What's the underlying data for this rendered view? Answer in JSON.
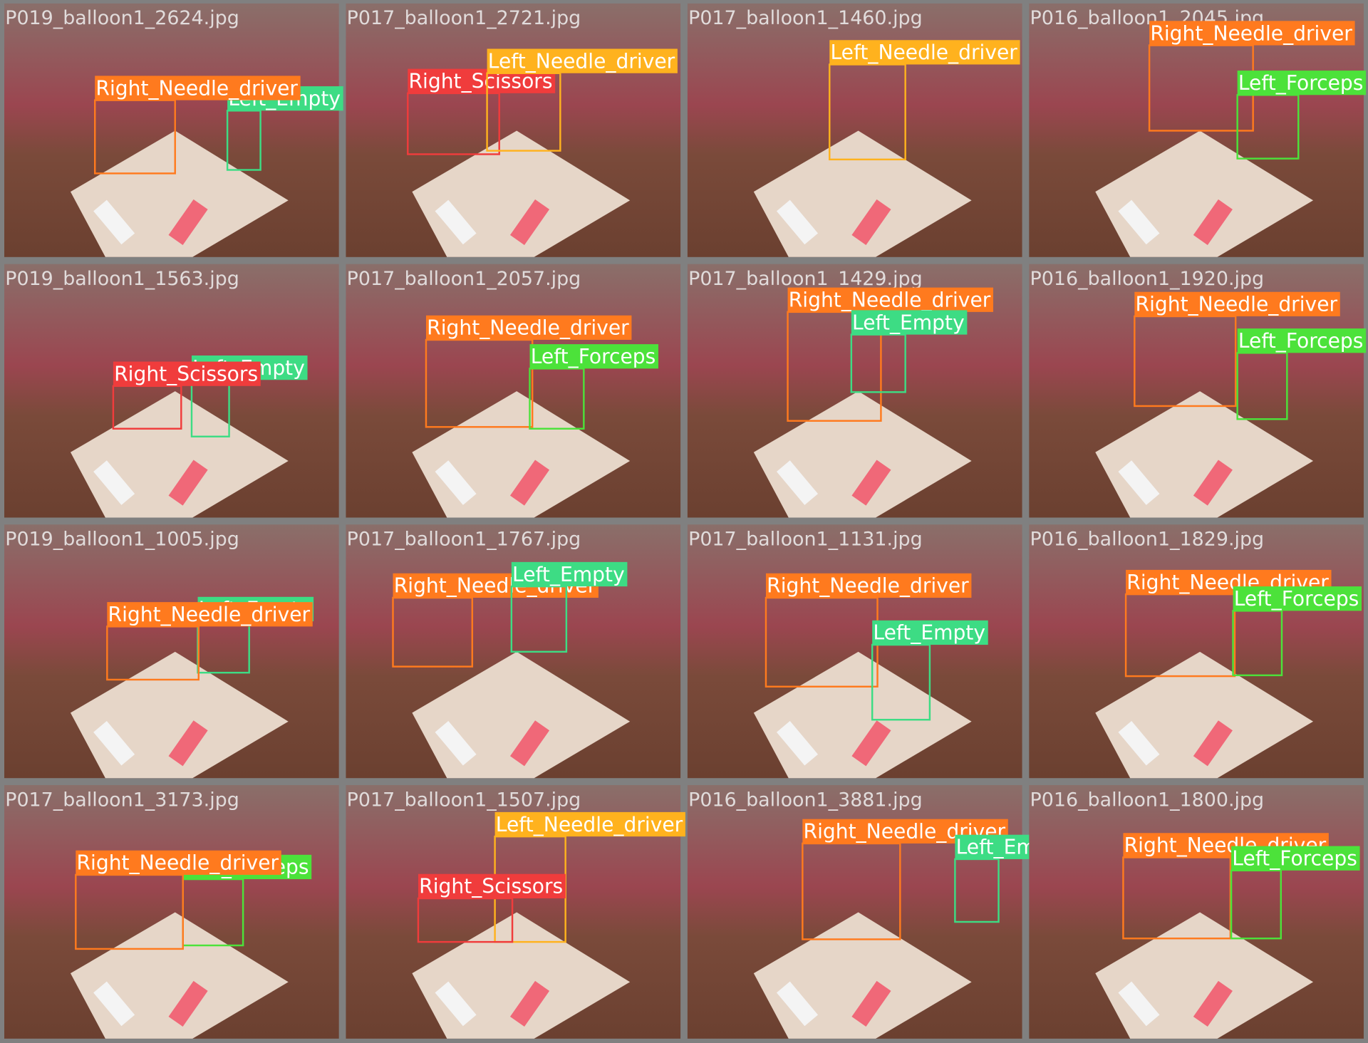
{
  "tiles": [
    {
      "filename": "P019_balloon1_2624.jpg",
      "detections": [
        {
          "label": "Left_Empty",
          "color": "#3ddc84"
        },
        {
          "label": "Right_Needle_driver",
          "color": "#ff7a1e"
        }
      ]
    },
    {
      "filename": "P017_balloon1_2721.jpg",
      "detections": [
        {
          "label": "Right_Scissors",
          "color": "#f03c3c"
        },
        {
          "label": "Left_Needle_driver",
          "color": "#ffb21e"
        }
      ]
    },
    {
      "filename": "P017_balloon1_1460.jpg",
      "detections": [
        {
          "label": "Left_Needle_driver",
          "color": "#ffb21e"
        }
      ]
    },
    {
      "filename": "P016_balloon1_2045.jpg",
      "detections": [
        {
          "label": "Right_Needle_driver",
          "color": "#ff7a1e"
        },
        {
          "label": "Left_Forceps",
          "color": "#4ce23a"
        }
      ]
    },
    {
      "filename": "P019_balloon1_1563.jpg",
      "detections": [
        {
          "label": "Left_Empty",
          "color": "#3ddc84"
        },
        {
          "label": "Right_Scissors",
          "color": "#f03c3c"
        }
      ]
    },
    {
      "filename": "P017_balloon1_2057.jpg",
      "detections": [
        {
          "label": "Right_Needle_driver",
          "color": "#ff7a1e"
        },
        {
          "label": "Left_Forceps",
          "color": "#4ce23a"
        }
      ]
    },
    {
      "filename": "P017_balloon1_1429.jpg",
      "detections": [
        {
          "label": "Right_Needle_driver",
          "color": "#ff7a1e"
        },
        {
          "label": "Left_Empty",
          "color": "#3ddc84"
        }
      ]
    },
    {
      "filename": "P016_balloon1_1920.jpg",
      "detections": [
        {
          "label": "Right_Needle_driver",
          "color": "#ff7a1e"
        },
        {
          "label": "Left_Forceps",
          "color": "#4ce23a"
        }
      ]
    },
    {
      "filename": "P019_balloon1_1005.jpg",
      "detections": [
        {
          "label": "Left_Empty",
          "color": "#3ddc84"
        },
        {
          "label": "Right_Needle_driver",
          "color": "#ff7a1e"
        }
      ]
    },
    {
      "filename": "P017_balloon1_1767.jpg",
      "detections": [
        {
          "label": "Right_Needle_driver",
          "color": "#ff7a1e"
        },
        {
          "label": "Left_Empty",
          "color": "#3ddc84"
        }
      ]
    },
    {
      "filename": "P017_balloon1_1131.jpg",
      "detections": [
        {
          "label": "Right_Needle_driver",
          "color": "#ff7a1e"
        },
        {
          "label": "Left_Empty",
          "color": "#3ddc84"
        }
      ]
    },
    {
      "filename": "P016_balloon1_1829.jpg",
      "detections": [
        {
          "label": "Right_Needle_driver",
          "color": "#ff7a1e"
        },
        {
          "label": "Left_Forceps",
          "color": "#4ce23a"
        }
      ]
    },
    {
      "filename": "P017_balloon1_3173.jpg",
      "detections": [
        {
          "label": "Left_Forceps",
          "color": "#4ce23a"
        },
        {
          "label": "Right_Needle_driver",
          "color": "#ff7a1e"
        }
      ]
    },
    {
      "filename": "P017_balloon1_1507.jpg",
      "detections": [
        {
          "label": "Left_Needle_driver",
          "color": "#ffb21e"
        },
        {
          "label": "Right_Scissors",
          "color": "#f03c3c"
        }
      ]
    },
    {
      "filename": "P016_balloon1_3881.jpg",
      "detections": [
        {
          "label": "Right_Needle_driver",
          "color": "#ff7a1e"
        },
        {
          "label": "Left_Empty",
          "color": "#3ddc84"
        }
      ]
    },
    {
      "filename": "P016_balloon1_1800.jpg",
      "detections": [
        {
          "label": "Right_Needle_driver",
          "color": "#ff7a1e"
        },
        {
          "label": "Left_Forceps",
          "color": "#4ce23a"
        }
      ]
    }
  ]
}
